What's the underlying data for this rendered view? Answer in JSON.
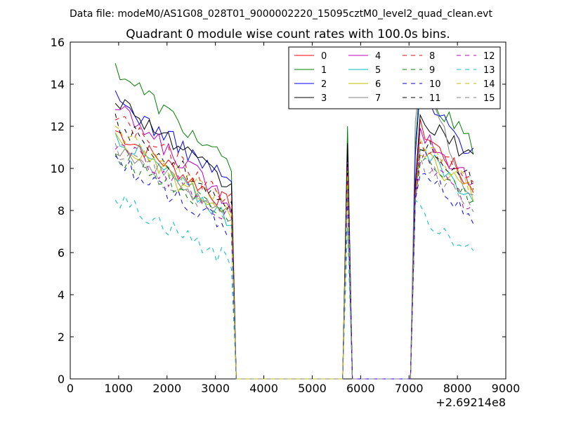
{
  "suptitle": "Data file: modeM0/AS1G08_028T01_9000002220_15095cztM0_level2_quad_clean.evt",
  "chart_data": {
    "type": "line",
    "title": "Quadrant 0 module wise count rates with 100.0s bins.",
    "xlabel": "",
    "ylabel": "",
    "x_offset_label": "+2.69214e8",
    "xlim": [
      0,
      9000
    ],
    "ylim": [
      0,
      16
    ],
    "xticks": [
      0,
      1000,
      2000,
      3000,
      4000,
      5000,
      6000,
      7000,
      8000,
      9000
    ],
    "yticks": [
      0,
      2,
      4,
      6,
      8,
      10,
      12,
      14,
      16
    ],
    "grid": false,
    "legend": {
      "placement": "top-right",
      "columns": 4
    },
    "x": [
      930,
      1030,
      1130,
      1230,
      1330,
      1430,
      1530,
      1630,
      1730,
      1830,
      1930,
      2030,
      2130,
      2230,
      2330,
      2430,
      2530,
      2630,
      2730,
      2830,
      2930,
      3030,
      3130,
      3230,
      3330,
      3430,
      3530,
      3630,
      3730,
      3830,
      3930,
      4030,
      4130,
      4230,
      4330,
      4430,
      4530,
      4630,
      4730,
      4830,
      4930,
      5030,
      5130,
      5230,
      5330,
      5430,
      5530,
      5630,
      5730,
      5830,
      5930,
      6030,
      6130,
      6230,
      6330,
      6430,
      6530,
      6630,
      6730,
      6830,
      6930,
      7030,
      7130,
      7230,
      7330,
      7430,
      7530,
      7630,
      7730,
      7830,
      7930,
      8030,
      8130,
      8230,
      8330
    ],
    "series": [
      {
        "name": "0",
        "color": "#ff0000",
        "style": "solid",
        "segments": [
          {
            "start": 930,
            "end": 3330,
            "base": 11.8,
            "endval": 8.2
          },
          {
            "peak_x": 5730,
            "peak": 10.0
          },
          {
            "start": 7130,
            "end": 8330,
            "base": 12.2,
            "endval": 9.0
          }
        ]
      },
      {
        "name": "1",
        "color": "#008000",
        "style": "solid",
        "segments": [
          {
            "start": 930,
            "end": 3330,
            "base": 14.8,
            "endval": 10.0
          },
          {
            "peak_x": 5730,
            "peak": 12.0
          },
          {
            "start": 7130,
            "end": 8330,
            "base": 14.2,
            "endval": 11.0
          }
        ]
      },
      {
        "name": "2",
        "color": "#0000ff",
        "style": "solid",
        "segments": [
          {
            "start": 930,
            "end": 3330,
            "base": 13.3,
            "endval": 9.3
          },
          {
            "peak_x": 5730,
            "peak": 11.1
          },
          {
            "start": 7130,
            "end": 8330,
            "base": 13.8,
            "endval": 10.6
          }
        ]
      },
      {
        "name": "3",
        "color": "#000000",
        "style": "solid",
        "segments": [
          {
            "start": 930,
            "end": 3330,
            "base": 13.4,
            "endval": 9.0
          },
          {
            "peak_x": 5730,
            "peak": 11.2
          },
          {
            "start": 7130,
            "end": 8330,
            "base": 12.5,
            "endval": 10.5
          }
        ]
      },
      {
        "name": "4",
        "color": "#bf00bf",
        "style": "solid",
        "segments": [
          {
            "start": 930,
            "end": 3330,
            "base": 12.9,
            "endval": 8.4
          },
          {
            "peak_x": 5730,
            "peak": 10.3
          },
          {
            "start": 7130,
            "end": 8330,
            "base": 12.0,
            "endval": 9.3
          }
        ]
      },
      {
        "name": "5",
        "color": "#00bfbf",
        "style": "solid",
        "segments": [
          {
            "start": 930,
            "end": 3330,
            "base": 11.6,
            "endval": 7.5
          },
          {
            "peak_x": 5730,
            "peak": 9.5
          },
          {
            "start": 7130,
            "end": 8330,
            "base": 11.0,
            "endval": 8.6
          }
        ]
      },
      {
        "name": "6",
        "color": "#bfbf00",
        "style": "solid",
        "segments": [
          {
            "start": 930,
            "end": 3330,
            "base": 11.4,
            "endval": 7.6
          },
          {
            "peak_x": 5730,
            "peak": 9.3
          },
          {
            "start": 7130,
            "end": 8330,
            "base": 10.8,
            "endval": 8.8
          }
        ]
      },
      {
        "name": "7",
        "color": "#808080",
        "style": "solid",
        "segments": [
          {
            "start": 930,
            "end": 3330,
            "base": 11.1,
            "endval": 7.8
          },
          {
            "peak_x": 5730,
            "peak": 9.6
          },
          {
            "start": 7130,
            "end": 8330,
            "base": 14.9,
            "endval": 8.4
          }
        ]
      },
      {
        "name": "8",
        "color": "#ff0000",
        "style": "dashed",
        "segments": [
          {
            "start": 930,
            "end": 3330,
            "base": 12.5,
            "endval": 8.4
          },
          {
            "peak_x": 5730,
            "peak": 9.8
          },
          {
            "start": 7130,
            "end": 8330,
            "base": 11.6,
            "endval": 9.2
          }
        ]
      },
      {
        "name": "9",
        "color": "#008000",
        "style": "dashed",
        "segments": [
          {
            "start": 930,
            "end": 3330,
            "base": 10.7,
            "endval": 7.6
          },
          {
            "peak_x": 5730,
            "peak": 9.2
          },
          {
            "start": 7130,
            "end": 8330,
            "base": 10.6,
            "endval": 8.5
          }
        ]
      },
      {
        "name": "10",
        "color": "#0000ff",
        "style": "dashed",
        "segments": [
          {
            "start": 930,
            "end": 3330,
            "base": 10.4,
            "endval": 7.0
          },
          {
            "peak_x": 5730,
            "peak": 8.7
          },
          {
            "start": 7130,
            "end": 8330,
            "base": 10.2,
            "endval": 7.6
          }
        ]
      },
      {
        "name": "11",
        "color": "#000000",
        "style": "dashed",
        "segments": [
          {
            "start": 930,
            "end": 3330,
            "base": 12.2,
            "endval": 8.3
          },
          {
            "peak_x": 5730,
            "peak": 10.2
          },
          {
            "start": 7130,
            "end": 8330,
            "base": 11.4,
            "endval": 9.4
          }
        ]
      },
      {
        "name": "12",
        "color": "#bf00bf",
        "style": "dashed",
        "segments": [
          {
            "start": 930,
            "end": 3330,
            "base": 11.2,
            "endval": 7.6
          },
          {
            "peak_x": 5730,
            "peak": 9.4
          },
          {
            "start": 7130,
            "end": 8330,
            "base": 10.9,
            "endval": 8.0
          }
        ]
      },
      {
        "name": "13",
        "color": "#00bfbf",
        "style": "dashed",
        "segments": [
          {
            "start": 930,
            "end": 3330,
            "base": 8.6,
            "endval": 5.6
          },
          {
            "peak_x": 5730,
            "peak": 7.2
          },
          {
            "start": 7130,
            "end": 8330,
            "base": 8.0,
            "endval": 6.0
          }
        ]
      },
      {
        "name": "14",
        "color": "#bfbf00",
        "style": "dashed",
        "segments": [
          {
            "start": 930,
            "end": 3330,
            "base": 11.9,
            "endval": 8.0
          },
          {
            "peak_x": 5730,
            "peak": 9.9
          },
          {
            "start": 7130,
            "end": 8330,
            "base": 11.3,
            "endval": 9.1
          }
        ]
      },
      {
        "name": "15",
        "color": "#808080",
        "style": "dashed",
        "segments": [
          {
            "start": 930,
            "end": 3330,
            "base": 10.9,
            "endval": 7.5
          },
          {
            "peak_x": 5730,
            "peak": 9.0
          },
          {
            "start": 7130,
            "end": 8330,
            "base": 10.5,
            "endval": 8.2
          }
        ]
      }
    ]
  }
}
